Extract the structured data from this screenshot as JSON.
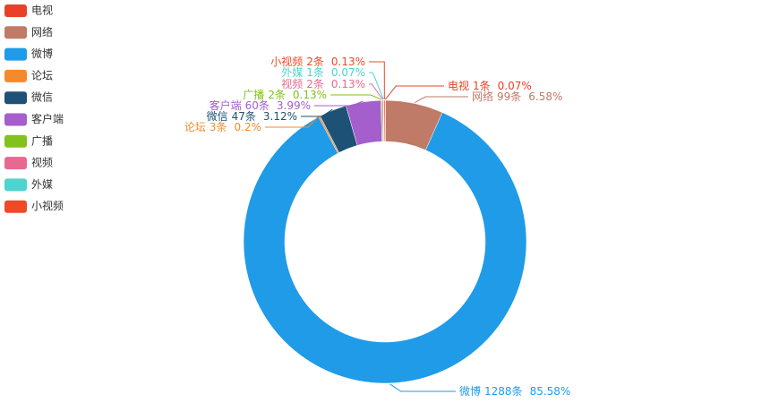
{
  "chart_data": {
    "type": "pie",
    "categories": [
      "电视",
      "网络",
      "微博",
      "论坛",
      "微信",
      "客户端",
      "广播",
      "视频",
      "外媒",
      "小视频"
    ],
    "values": [
      1,
      99,
      1288,
      3,
      47,
      60,
      2,
      2,
      1,
      2
    ],
    "value_labels": [
      "1条",
      "99条",
      "1288条",
      "3条",
      "47条",
      "60条",
      "2条",
      "2条",
      "1条",
      "2条"
    ],
    "percent_labels": [
      "0.07%",
      "6.58%",
      "85.58%",
      "0.2%",
      "3.12%",
      "3.99%",
      "0.13%",
      "0.13%",
      "0.07%",
      "0.13%"
    ],
    "colors": [
      "#e8412a",
      "#c07a68",
      "#1f9be8",
      "#f58a2c",
      "#1d5276",
      "#a45fcc",
      "#82c21b",
      "#e8698f",
      "#4fd3cf",
      "#ef4a28"
    ],
    "legend": "top-left"
  }
}
